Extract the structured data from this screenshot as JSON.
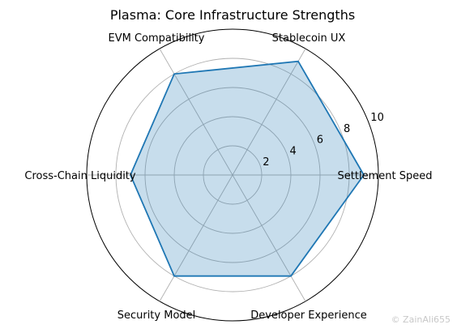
{
  "chart_data": {
    "type": "radar",
    "title": "Plasma: Core Infrastructure Strengths",
    "categories": [
      "Settlement Speed",
      "Stablecoin UX",
      "EVM Compatibility",
      "Cross-Chain Liquidity",
      "Security Model",
      "Developer Experience"
    ],
    "values": [
      9,
      9,
      8,
      7,
      8,
      8
    ],
    "rlim": [
      0,
      10
    ],
    "rticks": [
      "2",
      "4",
      "6",
      "8",
      "10"
    ],
    "grid": true,
    "line_color": "#1f77b4",
    "fill_color": "#1f77b4"
  },
  "watermark": "© ZainAli655"
}
